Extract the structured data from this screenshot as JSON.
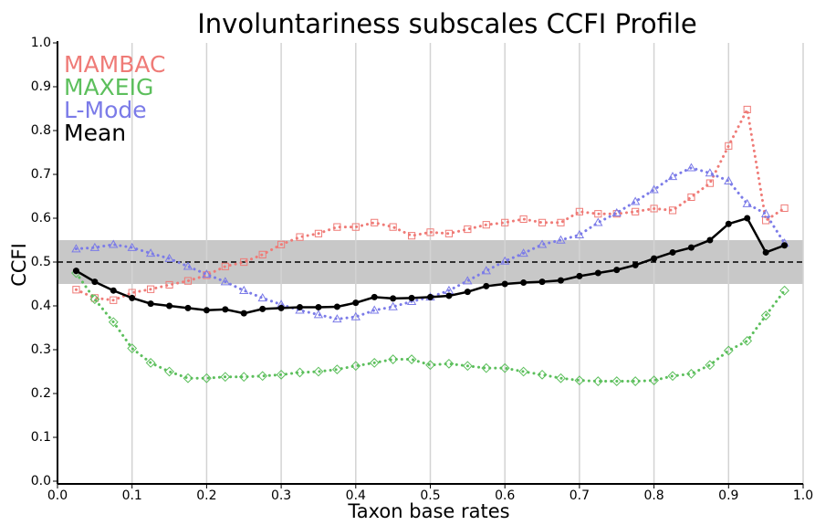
{
  "chart_data": {
    "type": "line",
    "title": "Involuntariness subscales CCFI Profile",
    "x_label": "Taxon base rates",
    "y_label": "CCFI",
    "x": [
      0.025,
      0.05,
      0.075,
      0.1,
      0.125,
      0.15,
      0.175,
      0.2,
      0.225,
      0.25,
      0.275,
      0.3,
      0.325,
      0.35,
      0.375,
      0.4,
      0.425,
      0.45,
      0.475,
      0.5,
      0.525,
      0.55,
      0.575,
      0.6,
      0.625,
      0.65,
      0.675,
      0.7,
      0.725,
      0.75,
      0.775,
      0.8,
      0.825,
      0.85,
      0.875,
      0.9,
      0.925,
      0.95,
      0.975
    ],
    "series": [
      {
        "name": "MAMBAC",
        "color": "#ef7b77",
        "marker": "square",
        "line_style": "dotted",
        "values": [
          0.437,
          0.418,
          0.413,
          0.43,
          0.438,
          0.448,
          0.457,
          0.47,
          0.49,
          0.5,
          0.517,
          0.54,
          0.557,
          0.565,
          0.58,
          0.58,
          0.59,
          0.58,
          0.56,
          0.568,
          0.565,
          0.575,
          0.585,
          0.59,
          0.598,
          0.59,
          0.59,
          0.615,
          0.61,
          0.61,
          0.615,
          0.622,
          0.618,
          0.648,
          0.68,
          0.765,
          0.848,
          0.595,
          0.623
        ]
      },
      {
        "name": "MAXEIG",
        "color": "#5cbf5c",
        "marker": "diamond",
        "line_style": "dotted",
        "values": [
          0.475,
          0.415,
          0.363,
          0.303,
          0.27,
          0.25,
          0.235,
          0.235,
          0.238,
          0.238,
          0.24,
          0.243,
          0.248,
          0.25,
          0.255,
          0.263,
          0.27,
          0.278,
          0.278,
          0.265,
          0.268,
          0.263,
          0.258,
          0.258,
          0.25,
          0.243,
          0.235,
          0.23,
          0.228,
          0.228,
          0.228,
          0.23,
          0.24,
          0.245,
          0.265,
          0.298,
          0.32,
          0.378,
          0.435
        ]
      },
      {
        "name": "L-Mode",
        "color": "#7b7be8",
        "marker": "triangle",
        "line_style": "dotted",
        "values": [
          0.53,
          0.533,
          0.54,
          0.533,
          0.52,
          0.508,
          0.49,
          0.472,
          0.455,
          0.435,
          0.418,
          0.403,
          0.39,
          0.38,
          0.37,
          0.375,
          0.39,
          0.398,
          0.41,
          0.42,
          0.435,
          0.457,
          0.48,
          0.502,
          0.52,
          0.54,
          0.55,
          0.562,
          0.59,
          0.612,
          0.638,
          0.665,
          0.695,
          0.715,
          0.703,
          0.685,
          0.633,
          0.61,
          0.543
        ]
      },
      {
        "name": "Mean",
        "color": "#000000",
        "marker": "circle",
        "line_style": "solid",
        "values": [
          0.48,
          0.455,
          0.435,
          0.418,
          0.405,
          0.4,
          0.395,
          0.39,
          0.392,
          0.383,
          0.393,
          0.395,
          0.397,
          0.397,
          0.398,
          0.407,
          0.42,
          0.417,
          0.418,
          0.42,
          0.423,
          0.432,
          0.445,
          0.45,
          0.453,
          0.455,
          0.458,
          0.468,
          0.475,
          0.482,
          0.493,
          0.508,
          0.522,
          0.533,
          0.55,
          0.587,
          0.6,
          0.522,
          0.538
        ]
      }
    ],
    "band": [
      0.45,
      0.55
    ],
    "band_color": "#c8c8c8",
    "reference_line": 0.5,
    "xlim": [
      0,
      1
    ],
    "ylim": [
      0,
      1
    ],
    "xticks": [
      {
        "value": 0,
        "label": "0.0"
      },
      0.1,
      0.2,
      0.3,
      0.4,
      0.5,
      0.6,
      0.7,
      0.8,
      0.9,
      {
        "value": 1,
        "label": "1.0"
      }
    ],
    "yticks": [
      {
        "value": 0,
        "label": "0.0"
      },
      0.1,
      0.2,
      0.3,
      0.4,
      0.5,
      0.6,
      0.7,
      0.8,
      0.9,
      {
        "value": 1,
        "label": "1.0"
      }
    ],
    "grid": "x",
    "legend": "upper left"
  }
}
